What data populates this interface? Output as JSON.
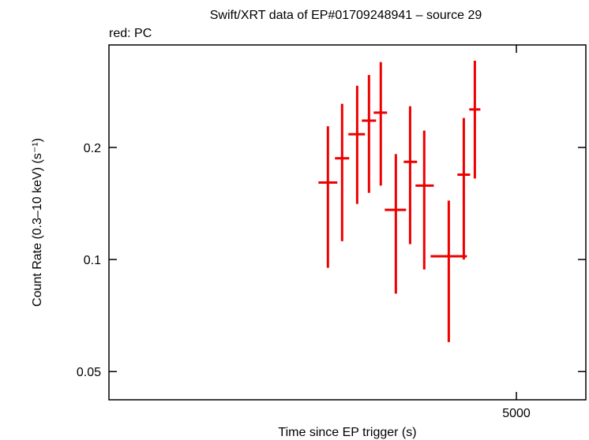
{
  "chart_data": {
    "type": "errorbar",
    "title": "Swift/XRT data of EP#01709248941 – source 29",
    "subtitle": "red: PC",
    "x_label": "Time since EP trigger (s)",
    "y_label": "Count Rate (0.3–10 keV) (s⁻¹)",
    "xlog": true,
    "ylog": true,
    "xlim": [
      568,
      7244
    ],
    "ylim": [
      0.042,
      0.377
    ],
    "xticks": [
      5000
    ],
    "yticks": [
      0.05,
      0.1,
      0.2
    ],
    "series": [
      {
        "color": "#ee0000",
        "x": [
          1828,
          1972,
          2137,
          2276,
          2424,
          2627,
          2835,
          3057,
          3485,
          3776,
          4005
        ],
        "x_min": [
          1738,
          1898,
          2039,
          2191,
          2334,
          2476,
          2740,
          2918,
          3162,
          3650,
          3888
        ],
        "x_max": [
          1922,
          2048,
          2228,
          2364,
          2507,
          2775,
          2943,
          3217,
          3839,
          3905,
          4125
        ],
        "values": [
          0.161,
          0.187,
          0.217,
          0.236,
          0.248,
          0.136,
          0.183,
          0.158,
          0.102,
          0.169,
          0.253
        ],
        "y_min": [
          0.095,
          0.112,
          0.141,
          0.151,
          0.158,
          0.081,
          0.11,
          0.094,
          0.06,
          0.1,
          0.165
        ],
        "y_max": [
          0.228,
          0.262,
          0.293,
          0.313,
          0.339,
          0.192,
          0.258,
          0.222,
          0.144,
          0.24,
          0.342
        ]
      }
    ]
  }
}
